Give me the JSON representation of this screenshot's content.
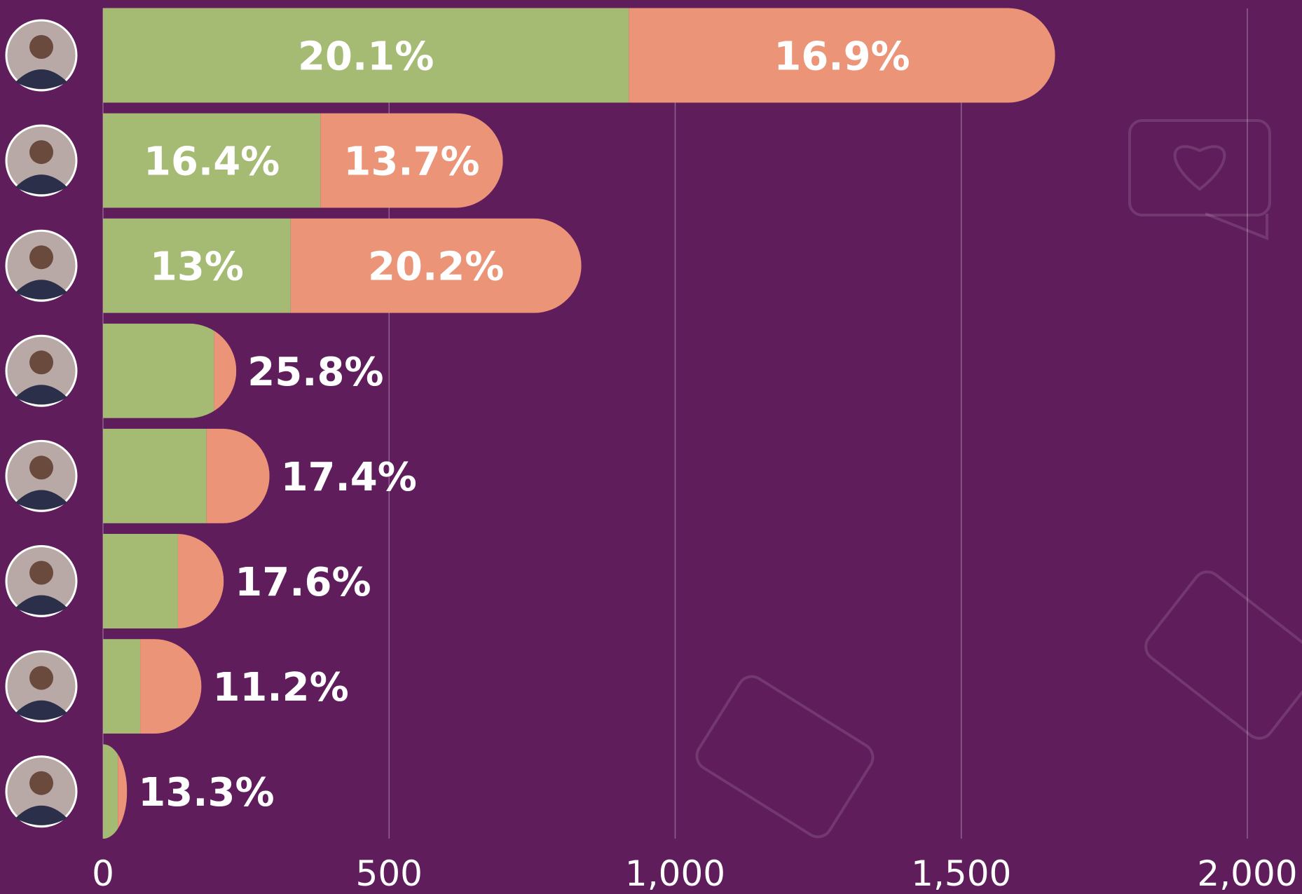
{
  "chart_data": {
    "type": "stacked-barh",
    "categories": [
      null,
      null,
      null,
      null,
      null,
      null,
      null,
      null
    ],
    "series": [
      {
        "color": "#a5bb73",
        "values": [
          919,
          380,
          328,
          194,
          181,
          131,
          65,
          26
        ],
        "labels": [
          "20.1%",
          "16.4%",
          "13%",
          "25.8%",
          "17.4%",
          "17.6%",
          "11.2%",
          "13.3%"
        ]
      },
      {
        "color": "#ec9477",
        "values": [
          745,
          319,
          508,
          39,
          110,
          80,
          107,
          16
        ],
        "labels": [
          "16.9%",
          "13.7%",
          "20.2%",
          null,
          null,
          null,
          null,
          null
        ]
      }
    ],
    "xlim": [
      0,
      2000
    ],
    "xticks": [
      0,
      500,
      {
        "value": 1000,
        "label": "1,000"
      },
      {
        "value": 1500,
        "label": "1,500"
      },
      {
        "value": 2000,
        "label": "2,000"
      }
    ],
    "grid": true
  }
}
